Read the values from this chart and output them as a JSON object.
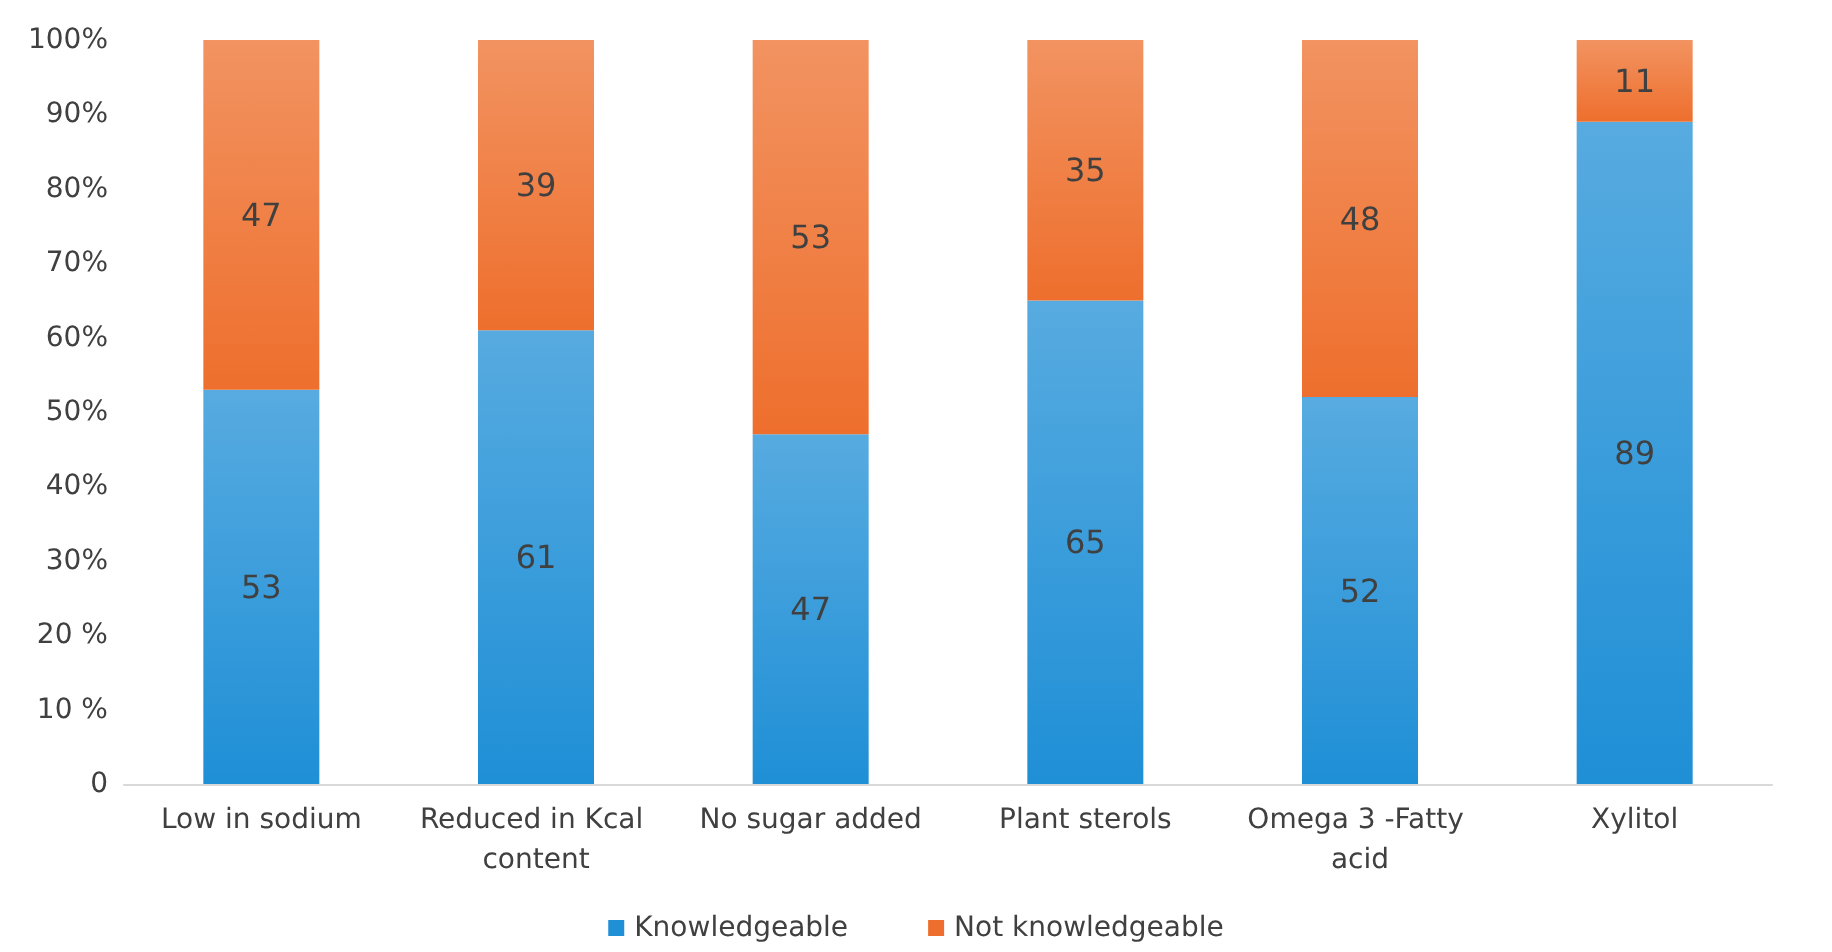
{
  "chart_data": {
    "type": "bar",
    "stacked": true,
    "categories": [
      "Low in sodium",
      "Reduced in Kcal content",
      "No sugar added",
      "Plant sterols",
      "Omega 3 -Fatty acid",
      "Xylitol"
    ],
    "series": [
      {
        "name": "Knowledgeable",
        "color": "#1f8fd6",
        "values": [
          53,
          61,
          47,
          65,
          52,
          89
        ]
      },
      {
        "name": "Not knowledgeable",
        "color": "#ee6f2d",
        "values": [
          47,
          39,
          53,
          35,
          48,
          11
        ]
      }
    ],
    "ylim": [
      0,
      100
    ],
    "yticks": [
      {
        "value": 0,
        "label": "0"
      },
      {
        "value": 10,
        "label": "10 %"
      },
      {
        "value": 20,
        "label": "20 %"
      },
      {
        "value": 30,
        "label": "30%"
      },
      {
        "value": 40,
        "label": "40%"
      },
      {
        "value": 50,
        "label": "50%"
      },
      {
        "value": 60,
        "label": "60%"
      },
      {
        "value": 70,
        "label": "70%"
      },
      {
        "value": 80,
        "label": "80%"
      },
      {
        "value": 90,
        "label": "90%"
      },
      {
        "value": 100,
        "label": "100%"
      }
    ],
    "data_labels": true,
    "grid": false,
    "legend": "bottom"
  }
}
